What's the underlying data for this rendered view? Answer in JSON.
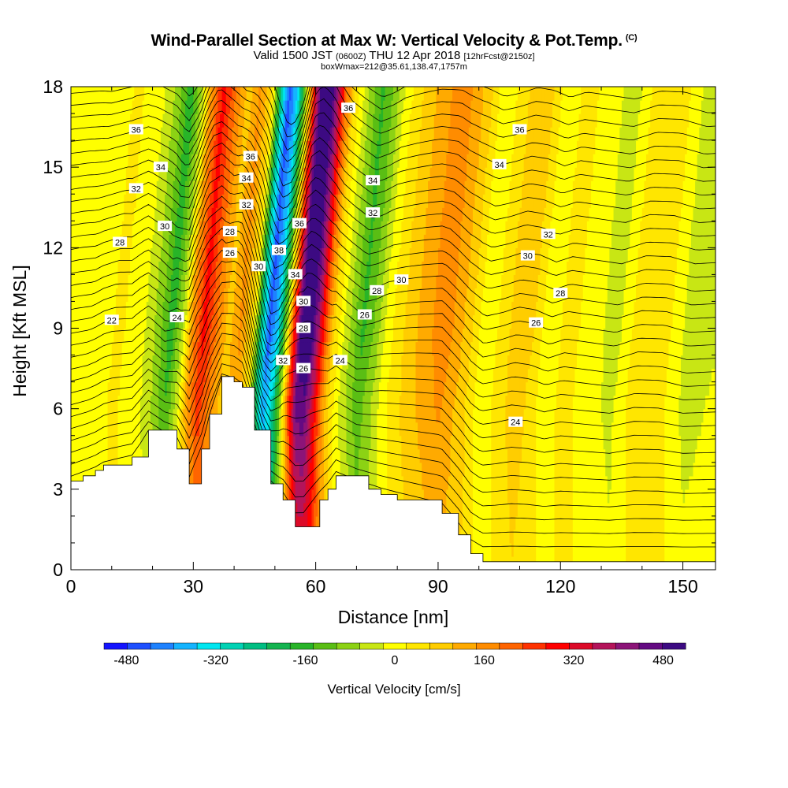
{
  "chart_data": {
    "type": "heatmap",
    "title": "Wind-Parallel Section at Max W: Vertical Velocity & Pot.Temp.",
    "title_mark": "(C)",
    "subtitle_prefix": "Valid 1500 JST",
    "subtitle_utc": "(0600Z)",
    "subtitle_date": "THU 12 Apr 2018",
    "subtitle_fcst": "[12hrFcst@2150z]",
    "subtitle2": "boxWmax=212@35.61,138.47,1757m",
    "xlabel": "Distance [nm]",
    "ylabel": "Height [Kft MSL]",
    "xlim": [
      0,
      158
    ],
    "ylim": [
      0,
      18
    ],
    "x_ticks": [
      0,
      30,
      60,
      90,
      120,
      150
    ],
    "y_ticks": [
      0,
      3,
      6,
      9,
      12,
      15,
      18
    ],
    "colorbar": {
      "title": "Vertical Velocity [cm/s]",
      "range": [
        -520,
        520
      ],
      "step": 40,
      "ticks": [
        "-480",
        "-320",
        "-160",
        "0",
        "160",
        "320",
        "480"
      ],
      "colors": [
        "#1414ff",
        "#1e50ff",
        "#1e82ff",
        "#14b4ff",
        "#00e6f0",
        "#00d2b4",
        "#00be82",
        "#14b450",
        "#28b428",
        "#5abe14",
        "#8cd214",
        "#c8e614",
        "#ffff00",
        "#ffe600",
        "#ffcd00",
        "#ffaa00",
        "#ff8c00",
        "#ff6400",
        "#ff3200",
        "#ff0000",
        "#dc0a28",
        "#b4145a",
        "#8c1478",
        "#640a82",
        "#3c0a82"
      ]
    },
    "vertical_velocity_profile_cm_s": {
      "x": [
        0,
        4,
        10,
        16,
        20,
        23,
        26,
        28,
        31,
        34,
        37,
        40,
        43,
        45,
        47,
        49,
        51,
        53,
        55,
        57,
        59,
        61,
        63,
        66,
        70,
        73,
        76,
        80,
        84,
        90,
        96,
        100,
        104,
        108,
        112,
        116,
        120,
        126,
        132,
        138,
        144,
        150,
        158
      ],
      "values": [
        -20,
        -40,
        10,
        -30,
        -100,
        -190,
        -60,
        120,
        260,
        160,
        60,
        130,
        20,
        -260,
        -460,
        -360,
        -120,
        220,
        480,
        500,
        360,
        180,
        40,
        -60,
        -170,
        -110,
        -20,
        40,
        90,
        150,
        60,
        -30,
        10,
        70,
        40,
        -40,
        20,
        -20,
        -60,
        30,
        20,
        -60,
        -40
      ]
    },
    "terrain_kft": {
      "x": [
        0,
        3,
        6,
        8,
        15,
        19,
        26,
        29,
        32,
        34,
        37,
        40,
        42,
        45,
        49,
        52,
        55,
        57,
        61,
        63,
        65,
        73,
        76,
        80,
        91,
        95,
        98,
        101,
        158
      ],
      "values": [
        3.3,
        3.5,
        3.7,
        3.9,
        4.2,
        5.2,
        4.5,
        3.2,
        4.5,
        5.8,
        7.2,
        7.0,
        6.8,
        5.2,
        3.2,
        2.6,
        1.6,
        1.6,
        2.6,
        3.0,
        3.5,
        3.0,
        2.8,
        2.6,
        2.1,
        1.3,
        0.6,
        0.3,
        0.3
      ]
    },
    "potential_temperature_contours": {
      "levels": [
        22,
        24,
        26,
        28,
        30,
        32,
        34,
        36,
        38
      ],
      "labels": [
        {
          "text": "36",
          "x": 16,
          "y": 16.4
        },
        {
          "text": "34",
          "x": 22,
          "y": 15.0
        },
        {
          "text": "32",
          "x": 16,
          "y": 14.2
        },
        {
          "text": "30",
          "x": 23,
          "y": 12.8
        },
        {
          "text": "28",
          "x": 12,
          "y": 12.2
        },
        {
          "text": "22",
          "x": 10,
          "y": 9.3
        },
        {
          "text": "24",
          "x": 26,
          "y": 9.4
        },
        {
          "text": "36",
          "x": 44,
          "y": 15.4
        },
        {
          "text": "34",
          "x": 43,
          "y": 14.6
        },
        {
          "text": "32",
          "x": 43,
          "y": 13.6
        },
        {
          "text": "28",
          "x": 39,
          "y": 12.6
        },
        {
          "text": "26",
          "x": 39,
          "y": 11.8
        },
        {
          "text": "30",
          "x": 46,
          "y": 11.3
        },
        {
          "text": "38",
          "x": 51,
          "y": 11.9
        },
        {
          "text": "36",
          "x": 56,
          "y": 12.9
        },
        {
          "text": "34",
          "x": 55,
          "y": 11.0
        },
        {
          "text": "30",
          "x": 57,
          "y": 10.0
        },
        {
          "text": "28",
          "x": 57,
          "y": 9.0
        },
        {
          "text": "32",
          "x": 52,
          "y": 7.8
        },
        {
          "text": "26",
          "x": 57,
          "y": 7.5
        },
        {
          "text": "24",
          "x": 66,
          "y": 7.8
        },
        {
          "text": "36",
          "x": 68,
          "y": 17.2
        },
        {
          "text": "34",
          "x": 74,
          "y": 14.5
        },
        {
          "text": "32",
          "x": 74,
          "y": 13.3
        },
        {
          "text": "30",
          "x": 81,
          "y": 10.8
        },
        {
          "text": "28",
          "x": 75,
          "y": 10.4
        },
        {
          "text": "26",
          "x": 72,
          "y": 9.5
        },
        {
          "text": "36",
          "x": 110,
          "y": 16.4
        },
        {
          "text": "34",
          "x": 105,
          "y": 15.1
        },
        {
          "text": "32",
          "x": 117,
          "y": 12.5
        },
        {
          "text": "30",
          "x": 112,
          "y": 11.7
        },
        {
          "text": "28",
          "x": 120,
          "y": 10.3
        },
        {
          "text": "26",
          "x": 114,
          "y": 9.2
        },
        {
          "text": "24",
          "x": 109,
          "y": 5.5
        }
      ]
    }
  }
}
